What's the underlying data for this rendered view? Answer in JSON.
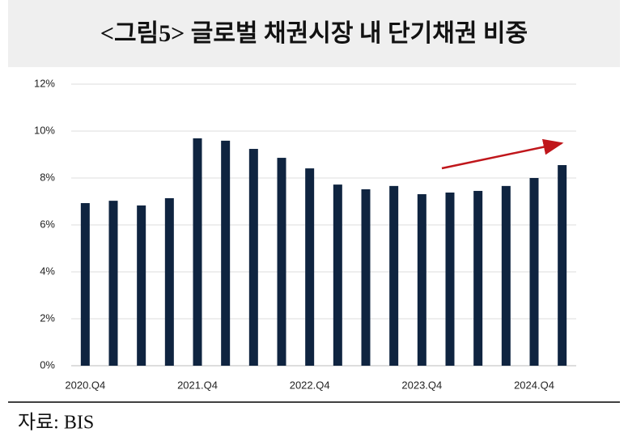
{
  "chart_data": {
    "type": "bar",
    "title": "<그림5> 글로벌 채권시장 내 단기채권 비중",
    "categories": [
      "2020.Q4",
      null,
      null,
      null,
      "2021.Q4",
      null,
      null,
      null,
      "2022.Q4",
      null,
      null,
      null,
      "2023.Q4",
      null,
      null,
      null,
      "2024.Q4",
      null
    ],
    "values": [
      6.93,
      7.03,
      6.83,
      7.14,
      9.69,
      9.59,
      9.24,
      8.86,
      8.41,
      7.72,
      7.52,
      7.66,
      7.31,
      7.38,
      7.45,
      7.66,
      8.0,
      8.55
    ],
    "color": "#0f2440",
    "ylim": [
      0,
      12
    ],
    "yticks": [
      {
        "value": 0,
        "label": "0%"
      },
      {
        "value": 2,
        "label": "2%"
      },
      {
        "value": 4,
        "label": "4%"
      },
      {
        "value": 6,
        "label": "6%"
      },
      {
        "value": 8,
        "label": "8%"
      },
      {
        "value": 10,
        "label": "10%"
      },
      {
        "value": 12,
        "label": "12%"
      }
    ],
    "grid": true,
    "source": "자료: BIS"
  }
}
